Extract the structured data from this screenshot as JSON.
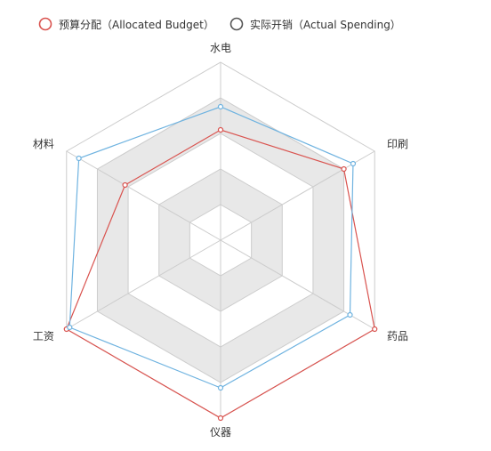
{
  "chart_data": {
    "type": "radar",
    "indicators": [
      {
        "name": "水电",
        "max": 100
      },
      {
        "name": "印刷",
        "max": 100
      },
      {
        "name": "药品",
        "max": 100
      },
      {
        "name": "仪器",
        "max": 100
      },
      {
        "name": "工资",
        "max": 100
      },
      {
        "name": "材料",
        "max": 100
      }
    ],
    "series": [
      {
        "name": "预算分配（Allocated Budget）",
        "color": "#d9534f",
        "values": [
          62,
          80,
          100,
          100,
          100,
          62
        ]
      },
      {
        "name": "实际开销（Actual Spending）",
        "color": "#6fb3e0",
        "values": [
          75,
          86,
          84,
          83,
          98,
          92
        ]
      }
    ],
    "legend_position": "top-left",
    "split_number": 5,
    "split_area_colors": [
      "#ffffff",
      "#e8e8e8"
    ],
    "split_line_color": "#cccccc"
  }
}
